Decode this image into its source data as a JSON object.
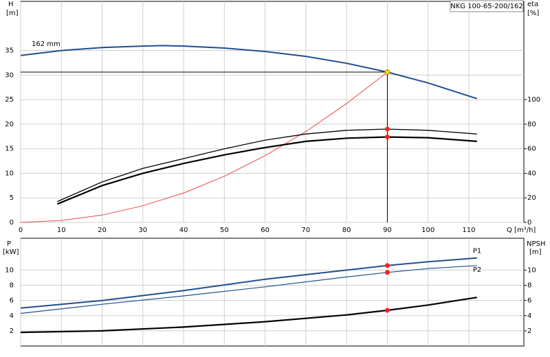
{
  "chart_data": [
    {
      "type": "line",
      "title": "NKG 100-65-200/162",
      "curve_label": "162 mm",
      "y_label": "H",
      "y_unit": "[m]",
      "y2_label": "eta",
      "y2_unit": "[%]",
      "x_label": "Q [m³/h]",
      "xlim": [
        0,
        123.5
      ],
      "xticks": [
        0,
        10,
        20,
        30,
        40,
        50,
        60,
        70,
        80,
        90,
        100,
        110
      ],
      "ylim": [
        0,
        45
      ],
      "yticks": [
        0,
        5,
        10,
        15,
        20,
        25,
        30,
        35
      ],
      "y2lim": [
        0,
        180
      ],
      "y2ticks": [
        0,
        20,
        40,
        60,
        80,
        100
      ],
      "grid": true,
      "series": [
        {
          "color": "#1f4e8c",
          "width": 2,
          "x": [
            0,
            10,
            20,
            30,
            35,
            40,
            50,
            60,
            70,
            80,
            90,
            100,
            112
          ],
          "values": [
            34,
            35,
            35.6,
            35.9,
            36,
            35.9,
            35.5,
            34.8,
            33.8,
            32.4,
            30.6,
            28.4,
            25.2
          ]
        },
        {
          "color": "#ee4444",
          "width": 1,
          "x": [
            0,
            10,
            20,
            30,
            40,
            50,
            60,
            70,
            80,
            90
          ],
          "values": [
            0,
            0.4,
            1.5,
            3.4,
            6,
            9.4,
            13.6,
            18.5,
            24.2,
            30.6
          ]
        },
        {
          "color": "#000000",
          "width": 1.3,
          "axis": "y2",
          "x": [
            9,
            20,
            30,
            40,
            50,
            60,
            70,
            80,
            90,
            100,
            112
          ],
          "values": [
            17,
            33,
            44,
            52,
            60,
            67,
            72,
            75,
            76,
            75,
            72
          ]
        },
        {
          "color": "#000000",
          "width": 2.2,
          "axis": "y2",
          "x": [
            9,
            20,
            30,
            40,
            50,
            60,
            70,
            80,
            90,
            100,
            112
          ],
          "values": [
            15,
            30,
            40,
            48,
            55,
            61,
            66,
            68.6,
            69.6,
            69,
            66
          ]
        }
      ],
      "points": [
        {
          "x": 90,
          "y": 30.6,
          "color": "#ffd700"
        },
        {
          "x": 90,
          "y": 76,
          "axis": "y2",
          "color": "#ff2020"
        },
        {
          "x": 90,
          "y": 69.6,
          "axis": "y2",
          "color": "#ff2020"
        }
      ]
    },
    {
      "type": "line",
      "y_label": "P",
      "y_unit": "[kW]",
      "y2_label": "NPSH",
      "y2_unit": "[m]",
      "ylim": [
        0,
        14.2
      ],
      "yticks": [
        2,
        4,
        6,
        8,
        10
      ],
      "y2lim": [
        0,
        14.2
      ],
      "y2ticks": [
        2,
        4,
        6,
        8,
        10
      ],
      "grid": true,
      "series": [
        {
          "name": "P1",
          "color": "#1f4e8c",
          "width": 2,
          "x": [
            0,
            10,
            20,
            40,
            60,
            80,
            90,
            100,
            112
          ],
          "values": [
            5,
            5.5,
            6,
            7.3,
            8.8,
            10,
            10.6,
            11.1,
            11.6
          ]
        },
        {
          "name": "P2",
          "color": "#1f4e8c",
          "width": 1.2,
          "x": [
            0,
            20,
            40,
            60,
            80,
            90,
            100,
            112
          ],
          "values": [
            4.3,
            5.5,
            6.6,
            7.8,
            9.1,
            9.7,
            10.2,
            10.6
          ]
        },
        {
          "color": "#000000",
          "width": 2.2,
          "axis": "y2",
          "x": [
            0,
            10,
            20,
            40,
            60,
            80,
            90,
            100,
            112
          ],
          "values": [
            1.8,
            1.9,
            2,
            2.5,
            3.2,
            4.1,
            4.7,
            5.4,
            6.4
          ]
        }
      ],
      "points": [
        {
          "x": 90,
          "y": 10.6,
          "color": "#ff2020"
        },
        {
          "x": 90,
          "y": 9.7,
          "color": "#ff2020"
        },
        {
          "x": 90,
          "y": 4.7,
          "axis": "y2",
          "color": "#ff2020"
        }
      ]
    }
  ]
}
